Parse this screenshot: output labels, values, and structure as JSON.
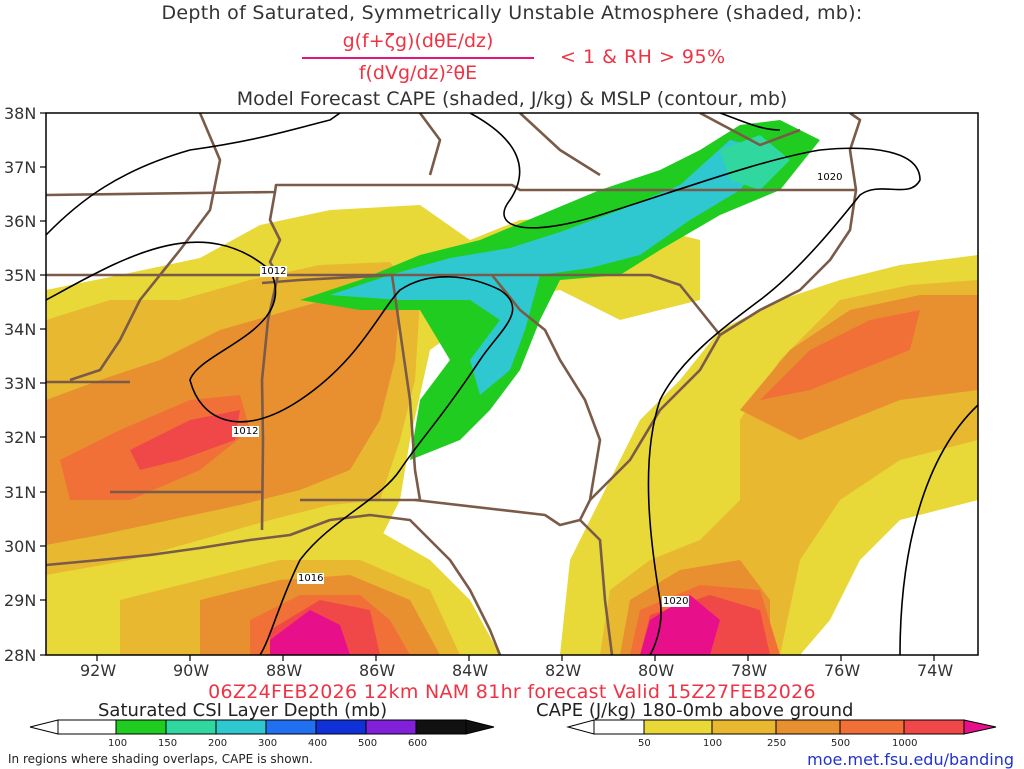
{
  "header": {
    "title_line1": "Depth of Saturated, Symmetrically Unstable Atmosphere (shaded, mb):",
    "fraction_numerator": "g(f+ζg)(dθE/dz)",
    "fraction_denominator": "f(dVg/dz)²θE",
    "condition": "< 1 & RH > 95%",
    "title_line3": "Model Forecast CAPE (shaded, J/kg) & MSLP (contour, mb)"
  },
  "map": {
    "lat_labels": [
      "38N",
      "37N",
      "36N",
      "35N",
      "34N",
      "33N",
      "32N",
      "31N",
      "30N",
      "29N",
      "28N"
    ],
    "lon_labels": [
      "92W",
      "90W",
      "88W",
      "86W",
      "84W",
      "82W",
      "80W",
      "78W",
      "76W",
      "74W"
    ],
    "isobar_labels": [
      "1012",
      "1012",
      "1016",
      "1020",
      "1020"
    ],
    "colors": {
      "border": "#7a5a48",
      "isobar": "#000000",
      "cape": [
        "#e8d838",
        "#e8b830",
        "#e89030",
        "#f07038",
        "#f04848",
        "#e8108a"
      ],
      "csi": [
        "#20cc20",
        "#30d8a0",
        "#30c8d0",
        "#2070f0",
        "#1030d8",
        "#8020d8",
        "#111111"
      ]
    }
  },
  "footer": {
    "valid_line": "06Z24FEB2026 12km NAM 81hr forecast Valid 15Z27FEB2026",
    "csi_title": "Saturated CSI Layer Depth (mb)",
    "csi_ticks": [
      "100",
      "150",
      "200",
      "300",
      "400",
      "500",
      "600"
    ],
    "cape_title": "CAPE (J/kg) 180-0mb above ground",
    "cape_ticks": [
      "50",
      "100",
      "250",
      "500",
      "1000"
    ],
    "footnote": "In regions where shading overlaps, CAPE is shown.",
    "url": "moe.met.fsu.edu/banding"
  }
}
